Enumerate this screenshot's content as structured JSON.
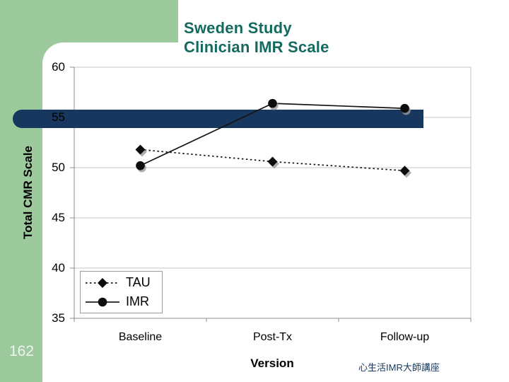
{
  "slide": {
    "title_line1": "Sweden Study",
    "title_line2": "Clinician IMR Scale",
    "page_number": "162",
    "footer_right": "心生活IMR大師講座",
    "colors": {
      "green": "#9cca9c",
      "navy": "#17375e",
      "teal": "#156a60",
      "gridline": "#c6c6c6",
      "axis": "#8c8c8c",
      "series_black": "#0d0d0d"
    }
  },
  "chart_data": {
    "type": "line",
    "categories": [
      "Baseline",
      "Post-Tx",
      "Follow-up"
    ],
    "series": [
      {
        "name": "TAU",
        "values": [
          51.8,
          50.6,
          49.7
        ],
        "marker": "diamond",
        "line": "dotted"
      },
      {
        "name": "IMR",
        "values": [
          50.2,
          56.4,
          55.9
        ],
        "marker": "circle",
        "line": "solid"
      }
    ],
    "xlabel": "Version",
    "ylabel": "Total CMR Scale",
    "ylim": [
      35,
      60
    ],
    "ytick_step": 5,
    "yticks": [
      60,
      55,
      50,
      45,
      40,
      35
    ],
    "grid": true,
    "legend_position": "bottom-left"
  }
}
